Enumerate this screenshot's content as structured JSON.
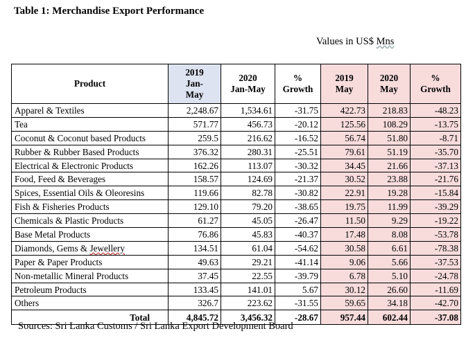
{
  "title": "Table 1: Merchandise Export Performance",
  "units_prefix": "Values in US$ ",
  "units_suffix": "Mns",
  "headers": {
    "product": "Product",
    "c1": [
      "2019",
      "Jan-",
      "May"
    ],
    "c2": [
      "2020",
      "Jan-May"
    ],
    "c3": [
      "%",
      "Growth"
    ],
    "c4": [
      "2019",
      "May"
    ],
    "c5": [
      "2020",
      "May"
    ],
    "c6": [
      "%",
      "Growth"
    ]
  },
  "rows": [
    [
      "Apparel & Textiles",
      "2,248.67",
      "1,534.61",
      "-31.75",
      "422.73",
      "218.83",
      "-48.23"
    ],
    [
      "Tea",
      "571.77",
      "456.73",
      "-20.12",
      "125.56",
      "108.29",
      "-13.75"
    ],
    [
      "Coconut & Coconut based Products",
      "259.5",
      "216.62",
      "-16.52",
      "56.74",
      "51.80",
      "-8.71"
    ],
    [
      "Rubber & Rubber Based Products",
      "376.32",
      "280.31",
      "-25.51",
      "79.61",
      "51.19",
      "-35.70"
    ],
    [
      "Electrical & Electronic Products",
      "162.26",
      "113.07",
      "-30.32",
      "34.45",
      "21.66",
      "-37.13"
    ],
    [
      "Food, Feed & Beverages",
      "158.57",
      "124.69",
      "-21.37",
      "30.52",
      "23.88",
      "-21.76"
    ],
    [
      "Spices, Essential Oils & Oleoresins",
      "119.66",
      "82.78",
      "-30.82",
      "22.91",
      "19.28",
      "-15.84"
    ],
    [
      "Fish & Fisheries Products",
      "129.10",
      "79.20",
      "-38.65",
      "19.75",
      "11.99",
      "-39.29"
    ],
    [
      "Chemicals & Plastic Products",
      "61.27",
      "45.05",
      "-26.47",
      "11.50",
      "9.29",
      "-19.22"
    ],
    [
      "Base Metal Products",
      "76.86",
      "45.83",
      "-40.37",
      "17.48",
      "8.08",
      "-53.78"
    ],
    [
      "Diamonds, Gems & Jewellery",
      "134.51",
      "61.04",
      "-54.62",
      "30.58",
      "6.61",
      "-78.38"
    ],
    [
      "Paper & Paper Products",
      "49.63",
      "29.21",
      "-41.14",
      "9.06",
      "5.66",
      "-37.53"
    ],
    [
      "Non-metallic Mineral Products",
      "37.45",
      "22.55",
      "-39.79",
      "6.78",
      "5.10",
      "-24.78"
    ],
    [
      "Petroleum Products",
      "133.45",
      "141.01",
      "5.67",
      "30.12",
      "26.60",
      "-11.69"
    ],
    [
      "Others",
      "326.7",
      "223.62",
      "-31.55",
      "59.65",
      "34.18",
      "-42.70"
    ]
  ],
  "total": [
    "Total",
    "4,845.72",
    "3,456.32",
    "-28.67",
    "957.44",
    "602.44",
    "-37.08"
  ],
  "source": "Sources:  Sri Lanka Customs / Sri Lanka Export Development Board"
}
